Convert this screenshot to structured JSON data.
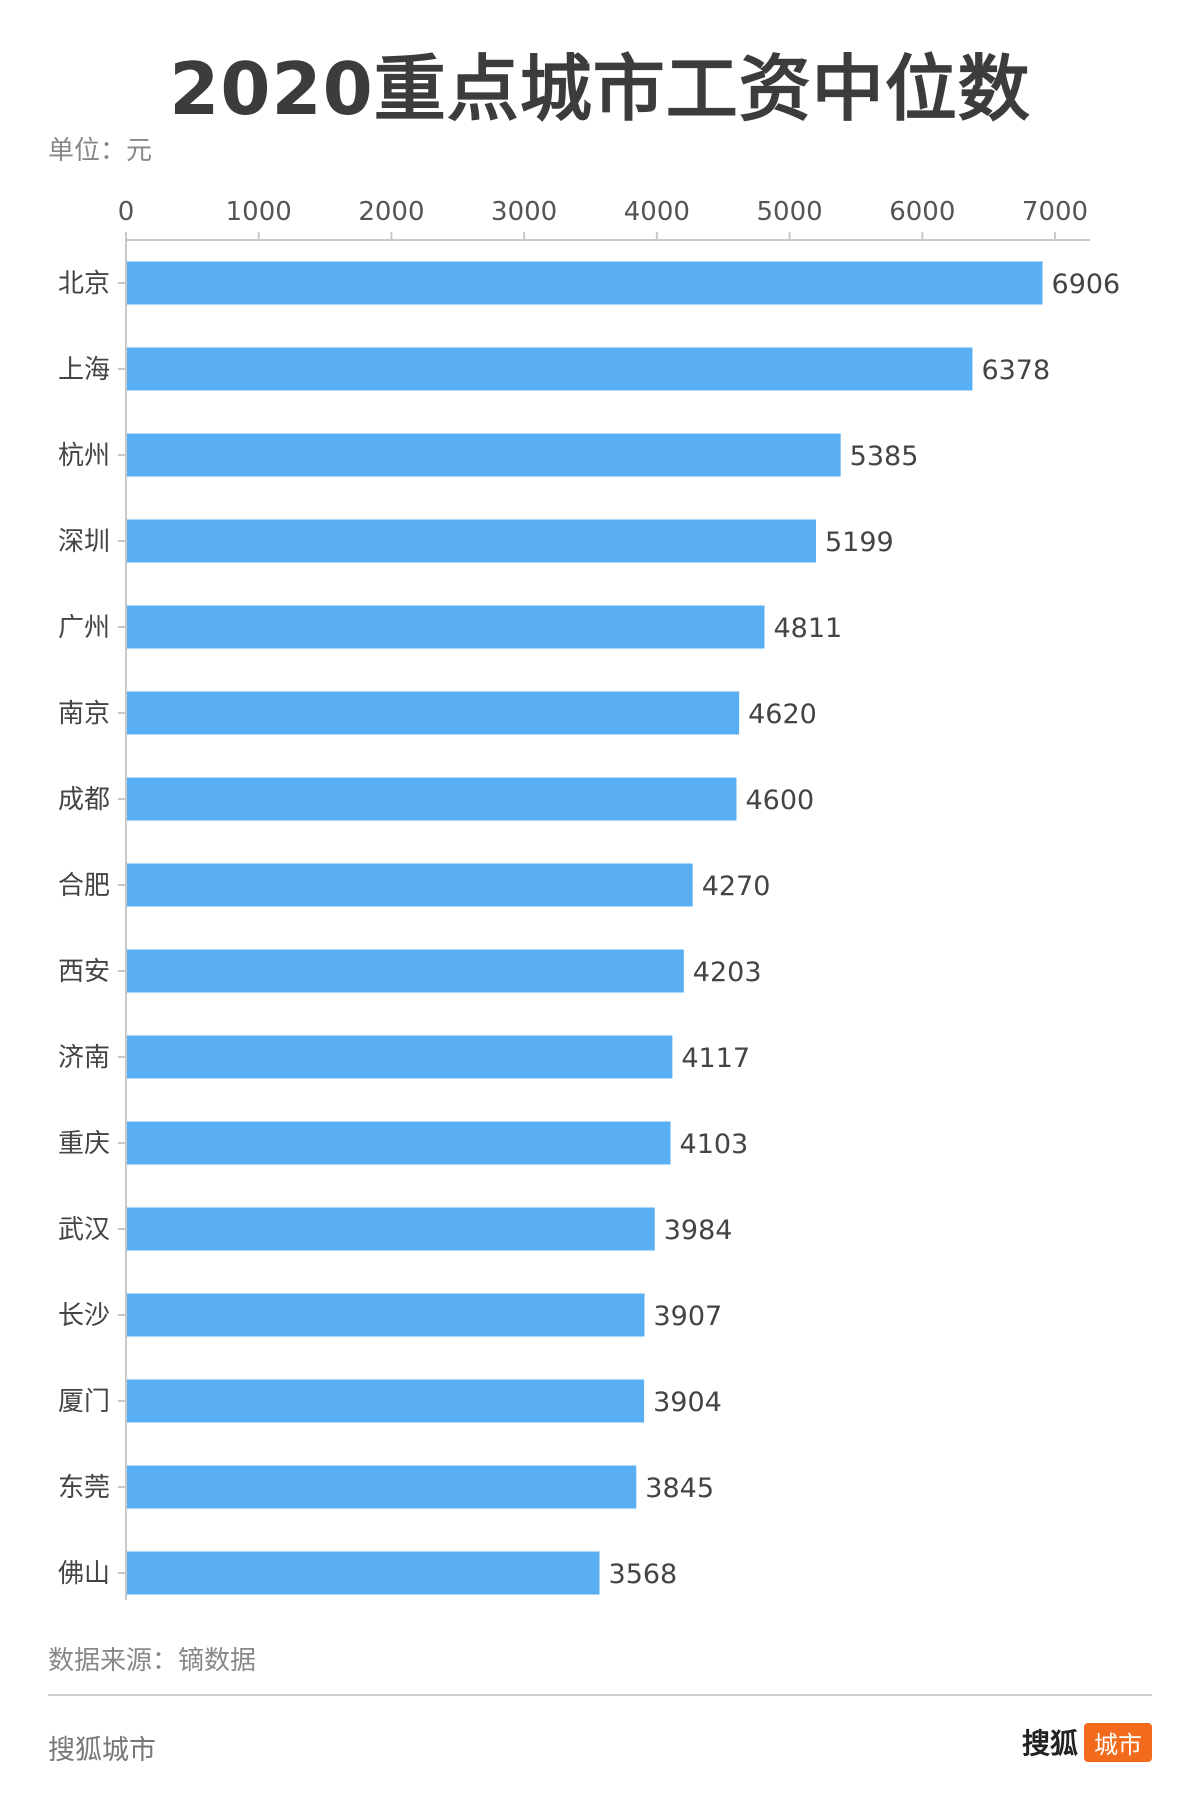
{
  "chart_data": {
    "type": "bar",
    "orientation": "horizontal",
    "title": "2020重点城市工资中位数",
    "unit_label": "单位：元",
    "categories": [
      "北京",
      "上海",
      "杭州",
      "深圳",
      "广州",
      "南京",
      "成都",
      "合肥",
      "西安",
      "济南",
      "重庆",
      "武汉",
      "长沙",
      "厦门",
      "东莞",
      "佛山"
    ],
    "values": [
      6906,
      6378,
      5385,
      5199,
      4811,
      4620,
      4600,
      4270,
      4203,
      4117,
      4103,
      3984,
      3907,
      3904,
      3845,
      3568
    ],
    "xlim": [
      0,
      7000
    ],
    "x_ticks": [
      0,
      1000,
      2000,
      3000,
      4000,
      5000,
      6000,
      7000
    ],
    "axis_position": "top",
    "grid": false,
    "bar_color": "#5aaef2"
  },
  "source": "数据来源：镝数据",
  "footer": {
    "left": "搜狐城市",
    "brand": "搜狐",
    "badge": "城市",
    "badge_color": "#f26a1b"
  }
}
